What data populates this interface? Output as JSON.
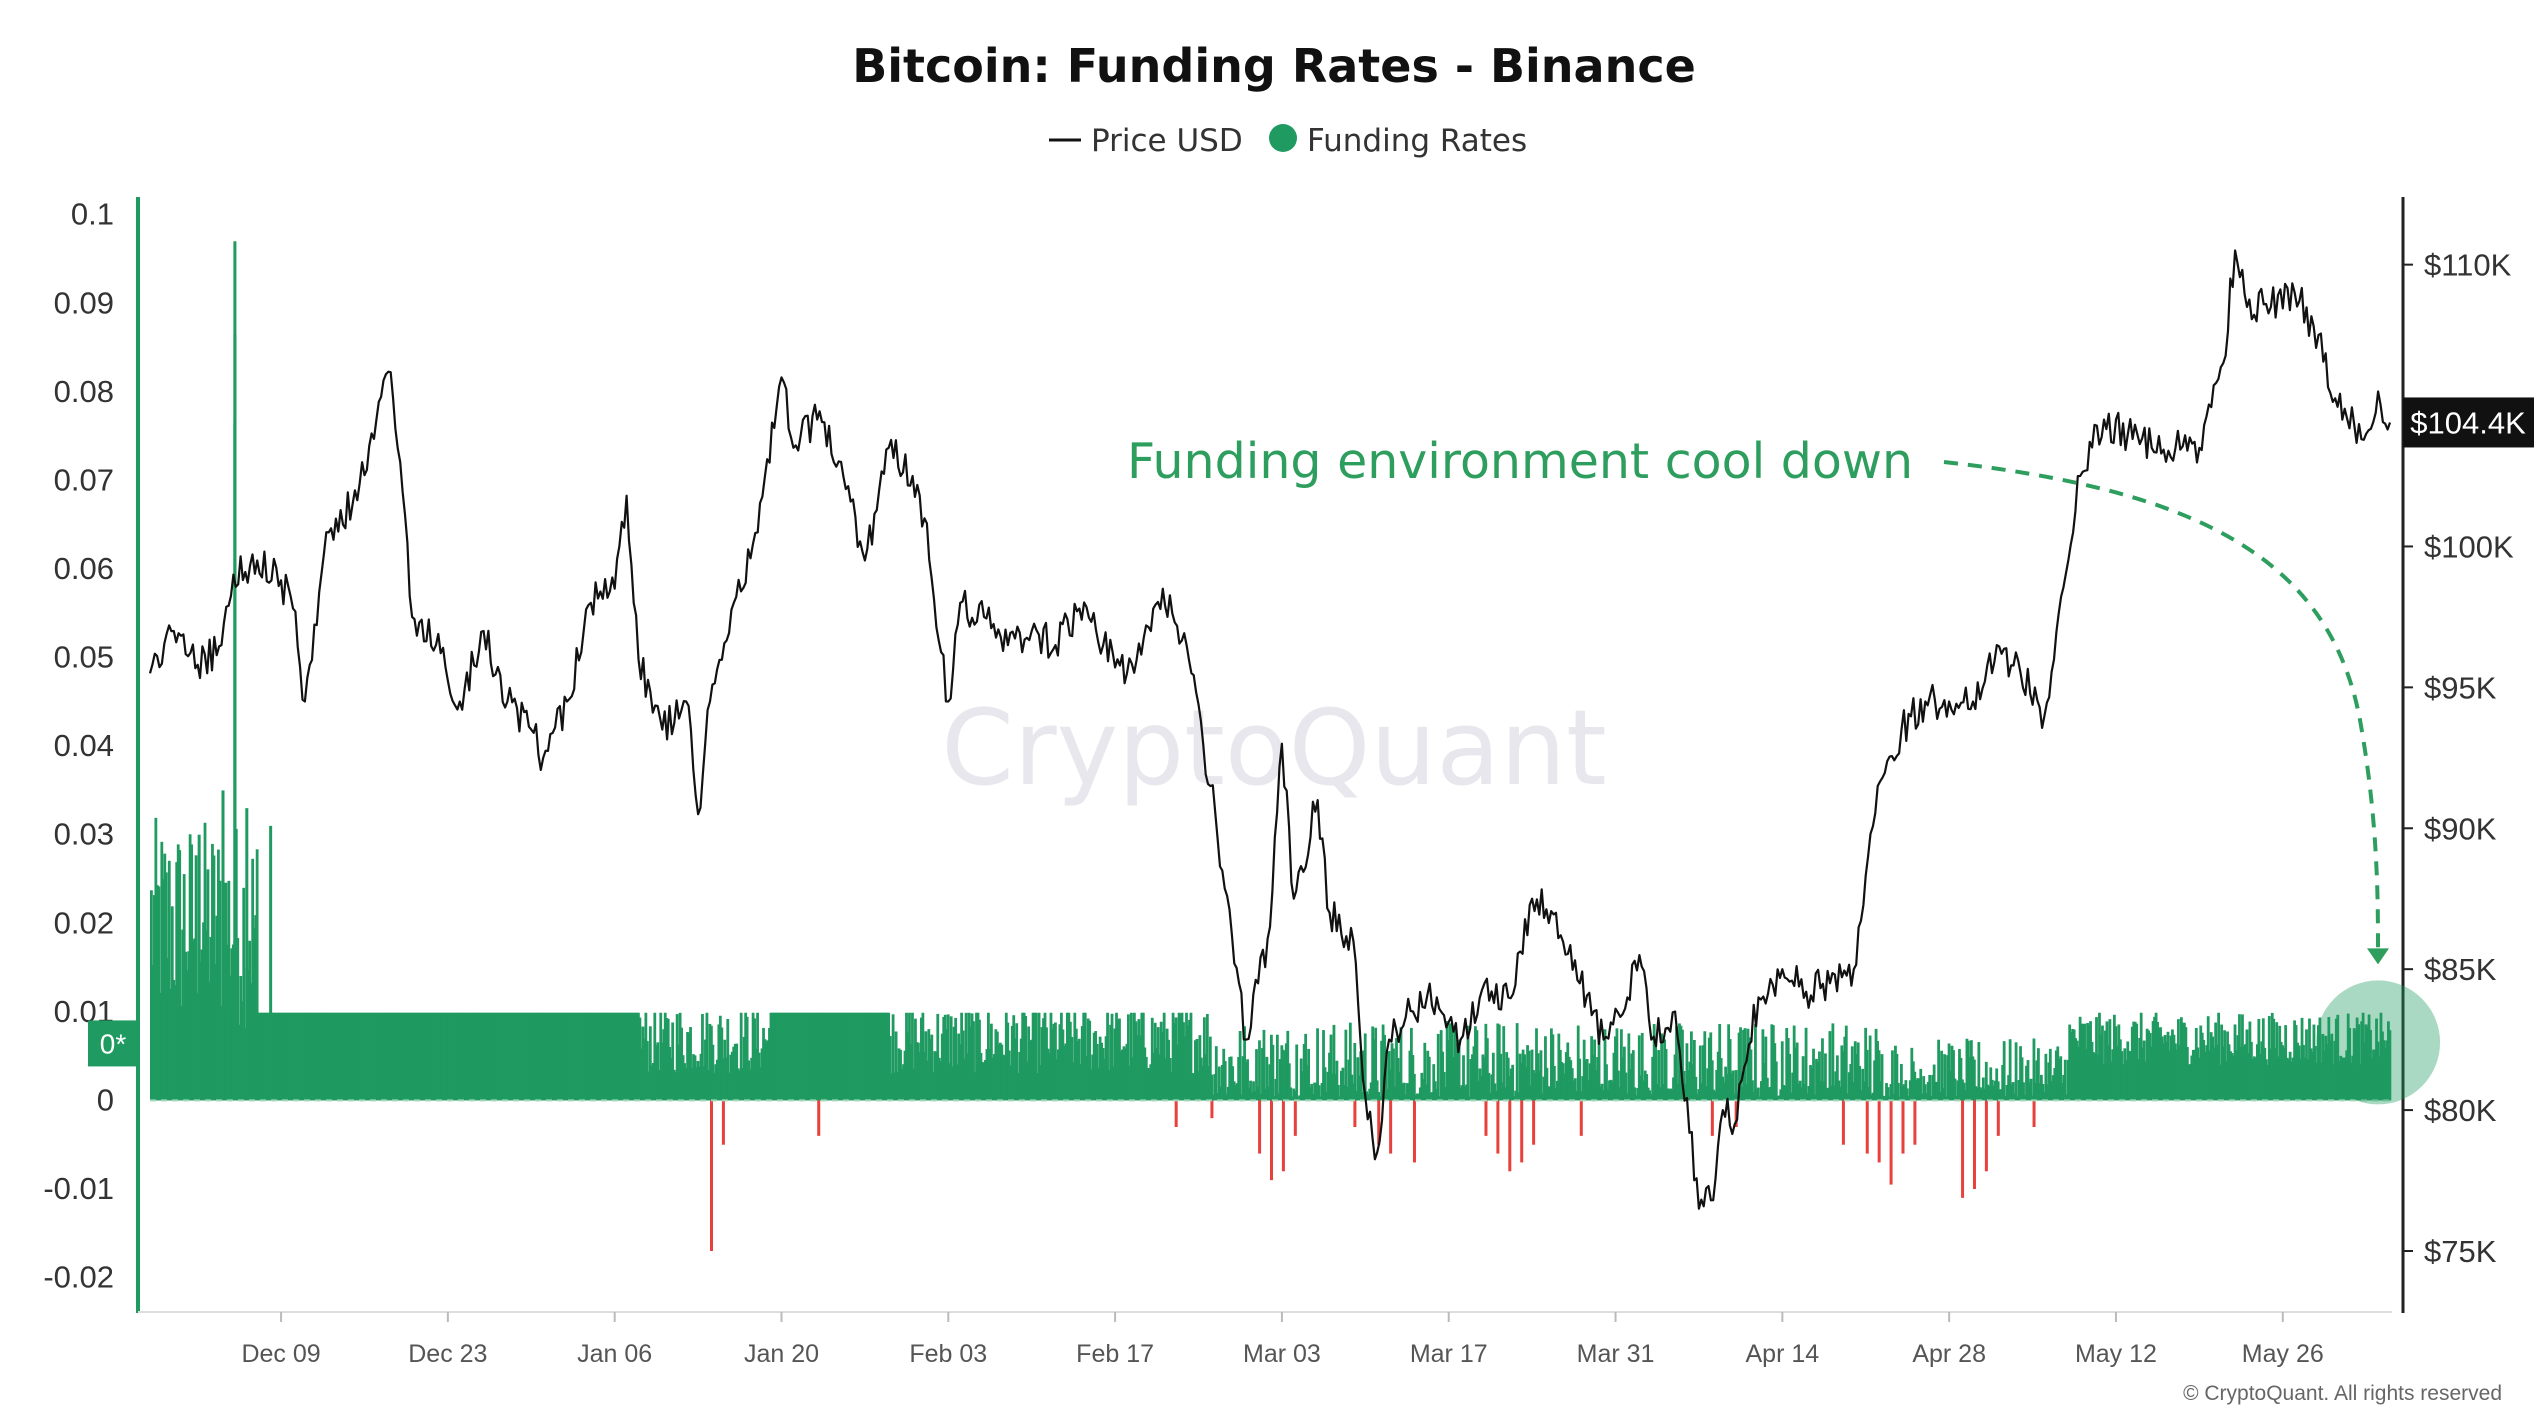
{
  "chart_data": {
    "type": "bar+line",
    "title": "Bitcoin: Funding Rates - Binance",
    "legend": [
      {
        "name": "Price USD",
        "marker": "line",
        "color": "#111111"
      },
      {
        "name": "Funding Rates",
        "marker": "dot",
        "color": "#1f9a60"
      }
    ],
    "x_axis": {
      "type": "date",
      "start": "2024-11-28",
      "end": "2025-06-04",
      "tick_labels": [
        "Dec 09",
        "Dec 23",
        "Jan 06",
        "Jan 20",
        "Feb 03",
        "Feb 17",
        "Mar 03",
        "Mar 17",
        "Mar 31",
        "Apr 14",
        "Apr 28",
        "May 12",
        "May 26"
      ],
      "tick_dates": [
        "2024-12-09",
        "2024-12-23",
        "2025-01-06",
        "2025-01-20",
        "2025-02-03",
        "2025-02-17",
        "2025-03-03",
        "2025-03-17",
        "2025-03-31",
        "2025-04-14",
        "2025-04-28",
        "2025-05-12",
        "2025-05-26"
      ]
    },
    "y_left": {
      "label": "",
      "range": [
        -0.024,
        0.102
      ],
      "ticks": [
        0.1,
        0.09,
        0.08,
        0.07,
        0.06,
        0.05,
        0.04,
        0.03,
        0.02,
        0.01,
        0,
        -0.01,
        -0.02
      ],
      "tick_labels": [
        "0.1",
        "0.09",
        "0.08",
        "0.07",
        "0.06",
        "0.05",
        "0.04",
        "0.03",
        "0.02",
        "0.01",
        "0",
        "-0.01",
        "-0.02"
      ],
      "zero_badge": "0*"
    },
    "y_right": {
      "label": "",
      "range": [
        72800,
        112400
      ],
      "ticks": [
        110000,
        100000,
        95000,
        90000,
        85000,
        80000,
        75000
      ],
      "tick_labels": [
        "$110K",
        "$100K",
        "$95K",
        "$90K",
        "$85K",
        "$80K",
        "$75K"
      ],
      "gap_tick_value": 105000,
      "current_value": 104400,
      "current_label": "$104.4K"
    },
    "series": [
      {
        "name": "Price USD",
        "type": "line",
        "axis": "right",
        "color": "#111111",
        "points": [
          [
            "2024-11-28",
            95500
          ],
          [
            "2024-11-30",
            97000
          ],
          [
            "2024-12-02",
            95800
          ],
          [
            "2024-12-04",
            96500
          ],
          [
            "2024-12-05",
            99000
          ],
          [
            "2024-12-07",
            99500
          ],
          [
            "2024-12-09",
            98800
          ],
          [
            "2024-12-10",
            97800
          ],
          [
            "2024-12-11",
            94500
          ],
          [
            "2024-12-13",
            100500
          ],
          [
            "2024-12-15",
            101500
          ],
          [
            "2024-12-17",
            104500
          ],
          [
            "2024-12-18",
            106200
          ],
          [
            "2024-12-19",
            103000
          ],
          [
            "2024-12-20",
            97500
          ],
          [
            "2024-12-22",
            96500
          ],
          [
            "2024-12-24",
            94500
          ],
          [
            "2024-12-26",
            97000
          ],
          [
            "2024-12-28",
            94500
          ],
          [
            "2024-12-30",
            93500
          ],
          [
            "2024-12-31",
            92500
          ],
          [
            "2025-01-02",
            94500
          ],
          [
            "2025-01-04",
            98000
          ],
          [
            "2025-01-06",
            98500
          ],
          [
            "2025-01-07",
            101800
          ],
          [
            "2025-01-08",
            96000
          ],
          [
            "2025-01-10",
            93500
          ],
          [
            "2025-01-12",
            94500
          ],
          [
            "2025-01-13",
            90500
          ],
          [
            "2025-01-14",
            94500
          ],
          [
            "2025-01-16",
            98000
          ],
          [
            "2025-01-18",
            100500
          ],
          [
            "2025-01-20",
            106000
          ],
          [
            "2025-01-21",
            103500
          ],
          [
            "2025-01-23",
            104500
          ],
          [
            "2025-01-25",
            103000
          ],
          [
            "2025-01-27",
            99500
          ],
          [
            "2025-01-29",
            103500
          ],
          [
            "2025-01-31",
            102500
          ],
          [
            "2025-02-01",
            101000
          ],
          [
            "2025-02-03",
            94500
          ],
          [
            "2025-02-04",
            98000
          ],
          [
            "2025-02-06",
            97500
          ],
          [
            "2025-02-08",
            96500
          ],
          [
            "2025-02-10",
            97000
          ],
          [
            "2025-02-12",
            96500
          ],
          [
            "2025-02-14",
            97800
          ],
          [
            "2025-02-16",
            96500
          ],
          [
            "2025-02-18",
            95500
          ],
          [
            "2025-02-20",
            97000
          ],
          [
            "2025-02-21",
            98500
          ],
          [
            "2025-02-23",
            96500
          ],
          [
            "2025-02-25",
            91500
          ],
          [
            "2025-02-26",
            88500
          ],
          [
            "2025-02-28",
            82500
          ],
          [
            "2025-03-01",
            84500
          ],
          [
            "2025-03-02",
            86500
          ],
          [
            "2025-03-03",
            93000
          ],
          [
            "2025-03-04",
            87500
          ],
          [
            "2025-03-06",
            91000
          ],
          [
            "2025-03-07",
            87000
          ],
          [
            "2025-03-09",
            86000
          ],
          [
            "2025-03-10",
            80500
          ],
          [
            "2025-03-11",
            78500
          ],
          [
            "2025-03-12",
            82500
          ],
          [
            "2025-03-14",
            83500
          ],
          [
            "2025-03-16",
            84000
          ],
          [
            "2025-03-18",
            82500
          ],
          [
            "2025-03-20",
            84500
          ],
          [
            "2025-03-22",
            84000
          ],
          [
            "2025-03-24",
            87500
          ],
          [
            "2025-03-26",
            87000
          ],
          [
            "2025-03-28",
            84500
          ],
          [
            "2025-03-30",
            82500
          ],
          [
            "2025-04-01",
            84000
          ],
          [
            "2025-04-02",
            85500
          ],
          [
            "2025-04-03",
            82500
          ],
          [
            "2025-04-05",
            83500
          ],
          [
            "2025-04-07",
            76500
          ],
          [
            "2025-04-08",
            76800
          ],
          [
            "2025-04-09",
            80000
          ],
          [
            "2025-04-10",
            79500
          ],
          [
            "2025-04-12",
            84000
          ],
          [
            "2025-04-14",
            85000
          ],
          [
            "2025-04-16",
            84200
          ],
          [
            "2025-04-18",
            84500
          ],
          [
            "2025-04-20",
            85000
          ],
          [
            "2025-04-22",
            91500
          ],
          [
            "2025-04-24",
            93500
          ],
          [
            "2025-04-26",
            94500
          ],
          [
            "2025-04-28",
            94500
          ],
          [
            "2025-04-30",
            94500
          ],
          [
            "2025-05-02",
            96500
          ],
          [
            "2025-05-04",
            95500
          ],
          [
            "2025-05-06",
            94000
          ],
          [
            "2025-05-08",
            99500
          ],
          [
            "2025-05-09",
            102500
          ],
          [
            "2025-05-11",
            104500
          ],
          [
            "2025-05-13",
            104000
          ],
          [
            "2025-05-15",
            103500
          ],
          [
            "2025-05-17",
            103500
          ],
          [
            "2025-05-19",
            103500
          ],
          [
            "2025-05-21",
            106500
          ],
          [
            "2025-05-22",
            110500
          ],
          [
            "2025-05-23",
            108500
          ],
          [
            "2025-05-25",
            108500
          ],
          [
            "2025-05-27",
            109000
          ],
          [
            "2025-05-29",
            107500
          ],
          [
            "2025-05-31",
            104500
          ],
          [
            "2025-06-02",
            104000
          ],
          [
            "2025-06-03",
            105500
          ],
          [
            "2025-06-04",
            104400
          ]
        ]
      },
      {
        "name": "Funding Rates",
        "type": "bar",
        "axis": "left",
        "positive_color": "#1f9a60",
        "negative_color": "#e8403c",
        "segments": [
          {
            "from": "2024-11-28",
            "to": "2024-12-07",
            "base": 0.02,
            "amplitude": 0.012
          },
          {
            "from": "2024-12-07",
            "to": "2025-01-08",
            "base": 0.0099,
            "amplitude": 0.0
          },
          {
            "from": "2025-01-08",
            "to": "2025-01-19",
            "base": 0.007,
            "amplitude": 0.004
          },
          {
            "from": "2025-01-19",
            "to": "2025-01-29",
            "base": 0.0099,
            "amplitude": 0.0
          },
          {
            "from": "2025-01-29",
            "to": "2025-02-25",
            "base": 0.007,
            "amplitude": 0.004
          },
          {
            "from": "2025-02-25",
            "to": "2025-03-11",
            "base": 0.004,
            "amplitude": 0.005
          },
          {
            "from": "2025-03-11",
            "to": "2025-04-22",
            "base": 0.004,
            "amplitude": 0.005
          },
          {
            "from": "2025-04-22",
            "to": "2025-05-08",
            "base": 0.003,
            "amplitude": 0.004
          },
          {
            "from": "2025-05-08",
            "to": "2025-06-04",
            "base": 0.007,
            "amplitude": 0.003
          }
        ],
        "spikes": [
          [
            "2024-12-05",
            0.097
          ],
          [
            "2024-12-05",
            0.0865
          ],
          [
            "2024-12-05",
            0.0765
          ],
          [
            "2024-12-06",
            0.033
          ],
          [
            "2024-12-04",
            0.035
          ],
          [
            "2024-12-08",
            0.031
          ],
          [
            "2024-12-02",
            0.03
          ]
        ],
        "negatives": [
          [
            "2025-01-14",
            -0.017
          ],
          [
            "2025-01-15",
            -0.005
          ],
          [
            "2025-01-23",
            -0.004
          ],
          [
            "2025-02-22",
            -0.003
          ],
          [
            "2025-02-25",
            -0.002
          ],
          [
            "2025-03-01",
            -0.006
          ],
          [
            "2025-03-02",
            -0.009
          ],
          [
            "2025-03-03",
            -0.008
          ],
          [
            "2025-03-04",
            -0.004
          ],
          [
            "2025-03-09",
            -0.003
          ],
          [
            "2025-03-11",
            -0.005
          ],
          [
            "2025-03-12",
            -0.006
          ],
          [
            "2025-03-14",
            -0.007
          ],
          [
            "2025-03-20",
            -0.004
          ],
          [
            "2025-03-21",
            -0.006
          ],
          [
            "2025-03-22",
            -0.008
          ],
          [
            "2025-03-23",
            -0.007
          ],
          [
            "2025-03-24",
            -0.005
          ],
          [
            "2025-03-28",
            -0.004
          ],
          [
            "2025-04-08",
            -0.004
          ],
          [
            "2025-04-10",
            -0.003
          ],
          [
            "2025-04-19",
            -0.005
          ],
          [
            "2025-04-21",
            -0.006
          ],
          [
            "2025-04-22",
            -0.007
          ],
          [
            "2025-04-23",
            -0.0095
          ],
          [
            "2025-04-24",
            -0.006
          ],
          [
            "2025-04-25",
            -0.005
          ],
          [
            "2025-04-29",
            -0.011
          ],
          [
            "2025-04-30",
            -0.01
          ],
          [
            "2025-05-01",
            -0.008
          ],
          [
            "2025-05-02",
            -0.004
          ],
          [
            "2025-05-05",
            -0.003
          ]
        ]
      }
    ],
    "annotation": {
      "text": "Funding environment cool down",
      "color": "#2e9e5e",
      "arrow": "dashed",
      "highlight_circle_date": "2025-06-03",
      "highlight_circle_value": 0.007
    },
    "grid": false,
    "legend_placement": "top-center"
  },
  "watermark": "CryptoQuant",
  "copyright": "© CryptoQuant. All rights reserved"
}
